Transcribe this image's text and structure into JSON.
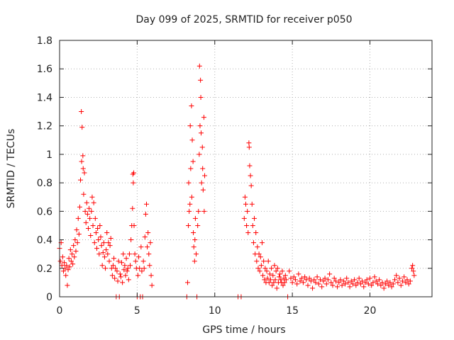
{
  "chart_data": {
    "type": "scatter",
    "title": "Day 099 of 2025, SRMTID for receiver p050",
    "xlabel": "GPS time / hours",
    "ylabel": "SRMTID / TECUs",
    "xlim": [
      0,
      24
    ],
    "ylim": [
      0,
      1.8
    ],
    "xticks": [
      0,
      5,
      10,
      15,
      20
    ],
    "xtick_labels": [
      "0",
      "5",
      "10",
      "15",
      "20"
    ],
    "yticks": [
      0,
      0.2,
      0.4,
      0.6,
      0.8,
      1.0,
      1.2,
      1.4,
      1.6,
      1.8
    ],
    "ytick_labels": [
      "0",
      "0.2",
      "0.4",
      "0.6",
      "0.8",
      "1",
      "1.2",
      "1.4",
      "1.6",
      "1.8"
    ],
    "grid": true,
    "marker": "+",
    "color": "#ff0000",
    "series": [
      {
        "name": "p050",
        "points": [
          [
            0.0,
            0.34
          ],
          [
            0.05,
            0.25
          ],
          [
            0.1,
            0.38
          ],
          [
            0.15,
            0.22
          ],
          [
            0.2,
            0.28
          ],
          [
            0.25,
            0.18
          ],
          [
            0.3,
            0.24
          ],
          [
            0.35,
            0.2
          ],
          [
            0.4,
            0.15
          ],
          [
            0.45,
            0.22
          ],
          [
            0.5,
            0.08
          ],
          [
            0.55,
            0.19
          ],
          [
            0.6,
            0.27
          ],
          [
            0.65,
            0.21
          ],
          [
            0.7,
            0.33
          ],
          [
            0.75,
            0.25
          ],
          [
            0.8,
            0.3
          ],
          [
            0.85,
            0.23
          ],
          [
            0.9,
            0.36
          ],
          [
            0.95,
            0.28
          ],
          [
            1.0,
            0.4
          ],
          [
            1.05,
            0.32
          ],
          [
            1.1,
            0.47
          ],
          [
            1.15,
            0.38
          ],
          [
            1.2,
            0.55
          ],
          [
            1.25,
            0.44
          ],
          [
            1.3,
            0.63
          ],
          [
            1.35,
            0.82
          ],
          [
            1.4,
            1.3
          ],
          [
            1.42,
            0.95
          ],
          [
            1.45,
            1.19
          ],
          [
            1.5,
            0.99
          ],
          [
            1.52,
            0.9
          ],
          [
            1.55,
            0.72
          ],
          [
            1.6,
            0.87
          ],
          [
            1.65,
            0.6
          ],
          [
            1.7,
            0.52
          ],
          [
            1.75,
            0.66
          ],
          [
            1.8,
            0.58
          ],
          [
            1.85,
            0.48
          ],
          [
            1.9,
            0.62
          ],
          [
            1.95,
            0.55
          ],
          [
            2.0,
            0.43
          ],
          [
            2.05,
            0.6
          ],
          [
            2.1,
            0.7
          ],
          [
            2.15,
            0.5
          ],
          [
            2.2,
            0.66
          ],
          [
            2.25,
            0.38
          ],
          [
            2.3,
            0.55
          ],
          [
            2.35,
            0.45
          ],
          [
            2.4,
            0.34
          ],
          [
            2.45,
            0.48
          ],
          [
            2.5,
            0.4
          ],
          [
            2.55,
            0.3
          ],
          [
            2.6,
            0.5
          ],
          [
            2.65,
            0.42
          ],
          [
            2.7,
            0.36
          ],
          [
            2.75,
            0.22
          ],
          [
            2.8,
            0.31
          ],
          [
            2.85,
            0.38
          ],
          [
            2.9,
            0.28
          ],
          [
            2.95,
            0.2
          ],
          [
            3.0,
            0.33
          ],
          [
            3.05,
            0.45
          ],
          [
            3.1,
            0.3
          ],
          [
            3.15,
            0.38
          ],
          [
            3.2,
            0.25
          ],
          [
            3.25,
            0.36
          ],
          [
            3.3,
            0.41
          ],
          [
            3.35,
            0.2
          ],
          [
            3.4,
            0.15
          ],
          [
            3.45,
            0.22
          ],
          [
            3.5,
            0.27
          ],
          [
            3.55,
            0.13
          ],
          [
            3.6,
            0.2
          ],
          [
            3.65,
            0.0
          ],
          [
            3.7,
            0.18
          ],
          [
            3.75,
            0.11
          ],
          [
            3.8,
            0.25
          ],
          [
            3.85,
            0.0
          ],
          [
            3.9,
            0.16
          ],
          [
            3.95,
            0.14
          ],
          [
            4.0,
            0.24
          ],
          [
            4.05,
            0.1
          ],
          [
            4.1,
            0.3
          ],
          [
            4.15,
            0.19
          ],
          [
            4.2,
            0.22
          ],
          [
            4.25,
            0.15
          ],
          [
            4.3,
            0.27
          ],
          [
            4.35,
            0.18
          ],
          [
            4.4,
            0.2
          ],
          [
            4.45,
            0.12
          ],
          [
            4.5,
            0.3
          ],
          [
            4.55,
            0.22
          ],
          [
            4.6,
            0.4
          ],
          [
            4.65,
            0.5
          ],
          [
            4.7,
            0.62
          ],
          [
            4.72,
            0.86
          ],
          [
            4.75,
            0.8
          ],
          [
            4.78,
            0.87
          ],
          [
            4.8,
            0.5
          ],
          [
            4.85,
            0.3
          ],
          [
            4.9,
            0.25
          ],
          [
            4.95,
            0.2
          ],
          [
            5.0,
            0.0
          ],
          [
            5.05,
            0.15
          ],
          [
            5.1,
            0.28
          ],
          [
            5.15,
            0.2
          ],
          [
            5.2,
            0.0
          ],
          [
            5.25,
            0.35
          ],
          [
            5.3,
            0.18
          ],
          [
            5.35,
            0.0
          ],
          [
            5.4,
            0.25
          ],
          [
            5.45,
            0.2
          ],
          [
            5.5,
            0.42
          ],
          [
            5.55,
            0.58
          ],
          [
            5.6,
            0.65
          ],
          [
            5.65,
            0.35
          ],
          [
            5.7,
            0.45
          ],
          [
            5.75,
            0.3
          ],
          [
            5.8,
            0.22
          ],
          [
            5.85,
            0.38
          ],
          [
            5.9,
            0.15
          ],
          [
            5.95,
            0.08
          ],
          [
            8.2,
            0.0
          ],
          [
            8.25,
            0.1
          ],
          [
            8.3,
            0.5
          ],
          [
            8.32,
            0.8
          ],
          [
            8.35,
            0.6
          ],
          [
            8.4,
            0.65
          ],
          [
            8.42,
            1.2
          ],
          [
            8.45,
            0.9
          ],
          [
            8.5,
            1.34
          ],
          [
            8.52,
            0.7
          ],
          [
            8.55,
            1.1
          ],
          [
            8.6,
            0.95
          ],
          [
            8.62,
            0.45
          ],
          [
            8.65,
            0.35
          ],
          [
            8.7,
            0.25
          ],
          [
            8.72,
            0.4
          ],
          [
            8.75,
            0.55
          ],
          [
            8.8,
            0.3
          ],
          [
            8.85,
            0.0
          ],
          [
            8.9,
            0.5
          ],
          [
            8.95,
            0.6
          ],
          [
            9.0,
            1.0
          ],
          [
            9.02,
            1.62
          ],
          [
            9.05,
            1.2
          ],
          [
            9.08,
            1.52
          ],
          [
            9.1,
            1.4
          ],
          [
            9.12,
            1.15
          ],
          [
            9.15,
            0.8
          ],
          [
            9.2,
            1.05
          ],
          [
            9.22,
            0.9
          ],
          [
            9.25,
            0.75
          ],
          [
            9.3,
            1.26
          ],
          [
            9.32,
            0.6
          ],
          [
            9.35,
            0.85
          ],
          [
            11.5,
            0.0
          ],
          [
            11.7,
            0.0
          ],
          [
            11.9,
            0.55
          ],
          [
            11.95,
            0.7
          ],
          [
            12.0,
            0.65
          ],
          [
            12.05,
            0.5
          ],
          [
            12.1,
            0.6
          ],
          [
            12.15,
            0.45
          ],
          [
            12.2,
            1.08
          ],
          [
            12.22,
            1.05
          ],
          [
            12.25,
            0.92
          ],
          [
            12.3,
            0.85
          ],
          [
            12.35,
            0.78
          ],
          [
            12.4,
            0.65
          ],
          [
            12.45,
            0.5
          ],
          [
            12.5,
            0.38
          ],
          [
            12.55,
            0.55
          ],
          [
            12.6,
            0.3
          ],
          [
            12.65,
            0.45
          ],
          [
            12.7,
            0.25
          ],
          [
            12.75,
            0.35
          ],
          [
            12.8,
            0.2
          ],
          [
            12.85,
            0.3
          ],
          [
            12.9,
            0.18
          ],
          [
            12.95,
            0.28
          ],
          [
            13.0,
            0.22
          ],
          [
            13.05,
            0.38
          ],
          [
            13.1,
            0.15
          ],
          [
            13.15,
            0.25
          ],
          [
            13.2,
            0.12
          ],
          [
            13.25,
            0.2
          ],
          [
            13.3,
            0.1
          ],
          [
            13.35,
            0.18
          ],
          [
            13.4,
            0.13
          ],
          [
            13.45,
            0.25
          ],
          [
            13.5,
            0.1
          ],
          [
            13.55,
            0.16
          ],
          [
            13.6,
            0.12
          ],
          [
            13.65,
            0.2
          ],
          [
            13.7,
            0.08
          ],
          [
            13.75,
            0.15
          ],
          [
            13.8,
            0.1
          ],
          [
            13.85,
            0.22
          ],
          [
            13.9,
            0.12
          ],
          [
            13.95,
            0.18
          ],
          [
            14.0,
            0.06
          ],
          [
            14.05,
            0.2
          ],
          [
            14.1,
            0.1
          ],
          [
            14.15,
            0.14
          ],
          [
            14.2,
            0.16
          ],
          [
            14.25,
            0.12
          ],
          [
            14.3,
            0.1
          ],
          [
            14.35,
            0.18
          ],
          [
            14.4,
            0.08
          ],
          [
            14.45,
            0.13
          ],
          [
            14.5,
            0.1
          ],
          [
            14.55,
            0.15
          ],
          [
            14.6,
            0.12
          ],
          [
            14.7,
            0.0
          ],
          [
            14.8,
            0.18
          ],
          [
            14.9,
            0.13
          ],
          [
            15.0,
            0.1
          ],
          [
            15.1,
            0.14
          ],
          [
            15.2,
            0.12
          ],
          [
            15.3,
            0.09
          ],
          [
            15.4,
            0.16
          ],
          [
            15.5,
            0.11
          ],
          [
            15.6,
            0.13
          ],
          [
            15.7,
            0.1
          ],
          [
            15.8,
            0.14
          ],
          [
            15.9,
            0.12
          ],
          [
            16.0,
            0.08
          ],
          [
            16.1,
            0.13
          ],
          [
            16.2,
            0.11
          ],
          [
            16.3,
            0.06
          ],
          [
            16.4,
            0.12
          ],
          [
            16.5,
            0.1
          ],
          [
            16.6,
            0.14
          ],
          [
            16.7,
            0.09
          ],
          [
            16.8,
            0.12
          ],
          [
            16.9,
            0.07
          ],
          [
            17.0,
            0.11
          ],
          [
            17.1,
            0.13
          ],
          [
            17.2,
            0.09
          ],
          [
            17.3,
            0.12
          ],
          [
            17.4,
            0.16
          ],
          [
            17.5,
            0.1
          ],
          [
            17.6,
            0.08
          ],
          [
            17.7,
            0.13
          ],
          [
            17.8,
            0.11
          ],
          [
            17.9,
            0.07
          ],
          [
            18.0,
            0.1
          ],
          [
            18.1,
            0.12
          ],
          [
            18.2,
            0.08
          ],
          [
            18.3,
            0.11
          ],
          [
            18.4,
            0.09
          ],
          [
            18.5,
            0.13
          ],
          [
            18.6,
            0.1
          ],
          [
            18.7,
            0.07
          ],
          [
            18.8,
            0.11
          ],
          [
            18.9,
            0.09
          ],
          [
            19.0,
            0.12
          ],
          [
            19.1,
            0.08
          ],
          [
            19.2,
            0.1
          ],
          [
            19.3,
            0.13
          ],
          [
            19.4,
            0.09
          ],
          [
            19.5,
            0.11
          ],
          [
            19.6,
            0.07
          ],
          [
            19.7,
            0.1
          ],
          [
            19.8,
            0.12
          ],
          [
            19.9,
            0.09
          ],
          [
            20.0,
            0.13
          ],
          [
            20.1,
            0.08
          ],
          [
            20.2,
            0.1
          ],
          [
            20.3,
            0.14
          ],
          [
            20.4,
            0.11
          ],
          [
            20.5,
            0.09
          ],
          [
            20.6,
            0.12
          ],
          [
            20.7,
            0.08
          ],
          [
            20.8,
            0.1
          ],
          [
            20.9,
            0.06
          ],
          [
            21.0,
            0.09
          ],
          [
            21.1,
            0.11
          ],
          [
            21.2,
            0.08
          ],
          [
            21.3,
            0.1
          ],
          [
            21.4,
            0.07
          ],
          [
            21.5,
            0.09
          ],
          [
            21.6,
            0.12
          ],
          [
            21.7,
            0.15
          ],
          [
            21.8,
            0.1
          ],
          [
            21.9,
            0.13
          ],
          [
            22.0,
            0.08
          ],
          [
            22.1,
            0.11
          ],
          [
            22.2,
            0.14
          ],
          [
            22.3,
            0.1
          ],
          [
            22.4,
            0.12
          ],
          [
            22.5,
            0.09
          ],
          [
            22.6,
            0.11
          ],
          [
            22.7,
            0.2
          ],
          [
            22.75,
            0.22
          ],
          [
            22.8,
            0.18
          ],
          [
            22.85,
            0.15
          ]
        ]
      }
    ]
  }
}
